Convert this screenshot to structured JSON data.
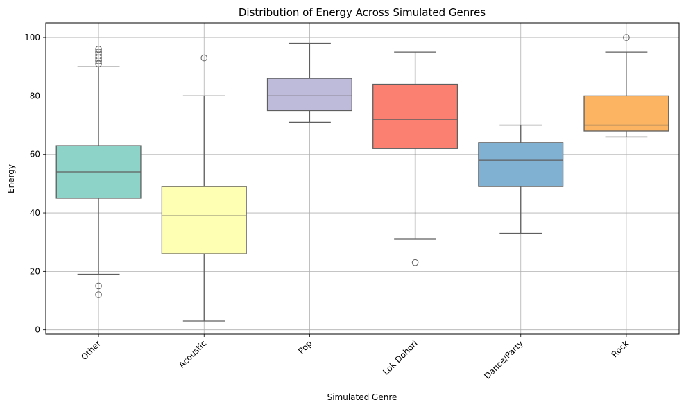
{
  "chart_data": {
    "type": "box",
    "title": "Distribution of Energy Across Simulated Genres",
    "xlabel": "Simulated Genre",
    "ylabel": "Energy",
    "ylim": [
      -1.5,
      105
    ],
    "yticks": [
      0,
      20,
      40,
      60,
      80,
      100
    ],
    "grid": true,
    "categories": [
      "Other",
      "Acoustic",
      "Pop",
      "Lok Dohori",
      "Dance/Party",
      "Rock"
    ],
    "boxes": [
      {
        "category": "Other",
        "whisker_low": 19,
        "q1": 45,
        "median": 54,
        "q3": 63,
        "whisker_high": 90,
        "outliers": [
          15,
          12,
          91,
          92,
          93,
          94,
          95,
          96
        ],
        "color": "#8dd3c7"
      },
      {
        "category": "Acoustic",
        "whisker_low": 3,
        "q1": 26,
        "median": 39,
        "q3": 49,
        "whisker_high": 80,
        "outliers": [
          93
        ],
        "color": "#ffffb3"
      },
      {
        "category": "Pop",
        "whisker_low": 71,
        "q1": 75,
        "median": 80,
        "q3": 86,
        "whisker_high": 98,
        "outliers": [],
        "color": "#bebada"
      },
      {
        "category": "Lok Dohori",
        "whisker_low": 31,
        "q1": 62,
        "median": 72,
        "q3": 84,
        "whisker_high": 95,
        "outliers": [
          23
        ],
        "color": "#fb8072"
      },
      {
        "category": "Dance/Party",
        "whisker_low": 33,
        "q1": 49,
        "median": 58,
        "q3": 64,
        "whisker_high": 70,
        "outliers": [],
        "color": "#80b1d3"
      },
      {
        "category": "Rock",
        "whisker_low": 66,
        "q1": 68,
        "median": 70,
        "q3": 80,
        "whisker_high": 95,
        "outliers": [
          100
        ],
        "color": "#fdb462"
      }
    ]
  }
}
